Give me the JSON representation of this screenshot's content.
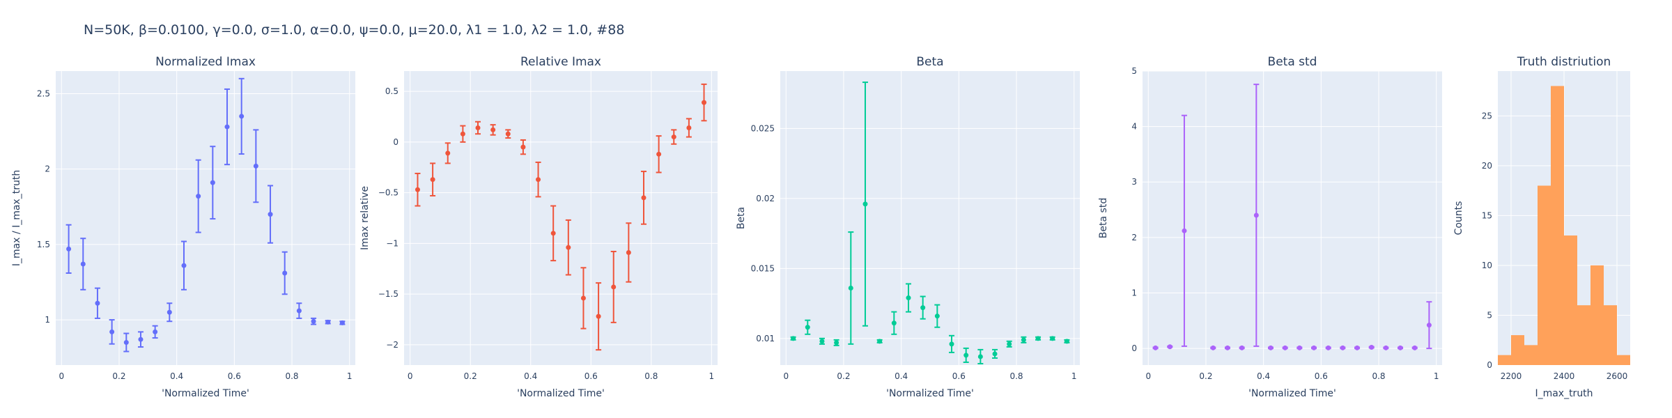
{
  "figure": {
    "title": "N=50K, β=0.0100, γ=0.0, σ=1.0,  α=0.0, ψ=0.0, μ=20.0, λ1 = 1.0, λ2 = 1.0, #88"
  },
  "chart_data": [
    {
      "type": "scatter",
      "title": "Normalized Imax",
      "xlabel": "'Normalized Time'",
      "ylabel": "I_max / I_max_truth",
      "xlim": [
        -0.02,
        1.02
      ],
      "ylim": [
        0.7,
        2.65
      ],
      "xticks": [
        0,
        0.2,
        0.4,
        0.6,
        0.8,
        1
      ],
      "xticklabels": [
        "0",
        "0.2",
        "0.4",
        "0.6",
        "0.8",
        "1"
      ],
      "yticks": [
        1,
        1.5,
        2,
        2.5
      ],
      "yticklabels": [
        "1",
        "1.5",
        "2",
        "2.5"
      ],
      "color": "#636efa",
      "grid": true,
      "x": [
        0.025,
        0.075,
        0.125,
        0.175,
        0.225,
        0.275,
        0.325,
        0.375,
        0.425,
        0.475,
        0.525,
        0.575,
        0.625,
        0.675,
        0.725,
        0.775,
        0.825,
        0.875,
        0.925,
        0.975
      ],
      "y": [
        1.47,
        1.37,
        1.11,
        0.92,
        0.85,
        0.87,
        0.92,
        1.05,
        1.36,
        1.82,
        1.91,
        2.28,
        2.35,
        2.02,
        1.7,
        1.31,
        1.06,
        0.99,
        0.985,
        0.98
      ],
      "err": [
        0.16,
        0.17,
        0.1,
        0.08,
        0.06,
        0.05,
        0.04,
        0.06,
        0.16,
        0.24,
        0.24,
        0.25,
        0.25,
        0.24,
        0.19,
        0.14,
        0.05,
        0.02,
        0.01,
        0.01
      ]
    },
    {
      "type": "scatter",
      "title": "Relative Imax",
      "xlabel": "'Normalized Time'",
      "ylabel": "Imax relative",
      "xlim": [
        -0.02,
        1.02
      ],
      "ylim": [
        -2.2,
        0.7
      ],
      "xticks": [
        0,
        0.2,
        0.4,
        0.6,
        0.8,
        1
      ],
      "xticklabels": [
        "0",
        "0.2",
        "0.4",
        "0.6",
        "0.8",
        "1"
      ],
      "yticks": [
        -2,
        -1.5,
        -1,
        -0.5,
        0,
        0.5
      ],
      "yticklabels": [
        "−2",
        "−1.5",
        "−1",
        "−0.5",
        "0",
        "0.5"
      ],
      "color": "#ef553b",
      "grid": true,
      "x": [
        0.025,
        0.075,
        0.125,
        0.175,
        0.225,
        0.275,
        0.325,
        0.375,
        0.425,
        0.475,
        0.525,
        0.575,
        0.625,
        0.675,
        0.725,
        0.775,
        0.825,
        0.875,
        0.925,
        0.975
      ],
      "y": [
        -0.47,
        -0.37,
        -0.11,
        0.08,
        0.14,
        0.12,
        0.08,
        -0.05,
        -0.37,
        -0.9,
        -1.04,
        -1.54,
        -1.72,
        -1.43,
        -1.09,
        -0.55,
        -0.12,
        0.05,
        0.14,
        0.39
      ],
      "err": [
        0.16,
        0.16,
        0.1,
        0.08,
        0.06,
        0.05,
        0.04,
        0.07,
        0.17,
        0.27,
        0.27,
        0.3,
        0.33,
        0.35,
        0.29,
        0.26,
        0.18,
        0.07,
        0.09,
        0.18
      ]
    },
    {
      "type": "scatter",
      "title": "Beta",
      "xlabel": "'Normalized Time'",
      "ylabel": "Beta",
      "xlim": [
        -0.02,
        1.02
      ],
      "ylim": [
        0.0081,
        0.0291
      ],
      "xticks": [
        0,
        0.2,
        0.4,
        0.6,
        0.8,
        1
      ],
      "xticklabels": [
        "0",
        "0.2",
        "0.4",
        "0.6",
        "0.8",
        "1"
      ],
      "yticks": [
        0.01,
        0.015,
        0.02,
        0.025
      ],
      "yticklabels": [
        "0.01",
        "0.015",
        "0.02",
        "0.025"
      ],
      "color": "#00cc96",
      "grid": true,
      "x": [
        0.025,
        0.075,
        0.125,
        0.175,
        0.225,
        0.275,
        0.325,
        0.375,
        0.425,
        0.475,
        0.525,
        0.575,
        0.625,
        0.675,
        0.725,
        0.775,
        0.825,
        0.875,
        0.925,
        0.975
      ],
      "y": [
        0.01,
        0.0108,
        0.0098,
        0.0097,
        0.0136,
        0.0196,
        0.0098,
        0.0111,
        0.0129,
        0.0122,
        0.0116,
        0.0096,
        0.0088,
        0.0087,
        0.0089,
        0.0096,
        0.0099,
        0.01,
        0.01,
        0.0098
      ],
      "err": [
        0.0001,
        0.0005,
        0.0002,
        0.0002,
        0.004,
        0.0087,
        0.0001,
        0.0008,
        0.001,
        0.0008,
        0.0008,
        0.0006,
        0.0005,
        0.0005,
        0.0003,
        0.0002,
        0.0002,
        0.0001,
        0.0001,
        0.0001
      ]
    },
    {
      "type": "scatter",
      "title": "Beta std",
      "xlabel": "'Normalized Time'",
      "ylabel": "Beta std",
      "xlim": [
        -0.02,
        1.02
      ],
      "ylim": [
        -0.3,
        5.0
      ],
      "xticks": [
        0,
        0.2,
        0.4,
        0.6,
        0.8,
        1
      ],
      "xticklabels": [
        "0",
        "0.2",
        "0.4",
        "0.6",
        "0.8",
        "1"
      ],
      "yticks": [
        0,
        1,
        2,
        3,
        4,
        5
      ],
      "yticklabels": [
        "0",
        "1",
        "2",
        "3",
        "4",
        "5"
      ],
      "color": "#ab63fa",
      "grid": true,
      "x": [
        0.025,
        0.075,
        0.125,
        0.225,
        0.275,
        0.325,
        0.375,
        0.425,
        0.475,
        0.525,
        0.575,
        0.625,
        0.675,
        0.725,
        0.775,
        0.825,
        0.875,
        0.925,
        0.975
      ],
      "y": [
        0.01,
        0.03,
        2.12,
        0.01,
        0.01,
        0.01,
        2.4,
        0.01,
        0.01,
        0.01,
        0.01,
        0.01,
        0.01,
        0.01,
        0.02,
        0.01,
        0.01,
        0.01,
        0.42
      ],
      "err": [
        0.01,
        0.01,
        2.08,
        0.01,
        0.01,
        0.01,
        2.36,
        0.01,
        0.01,
        0.01,
        0.01,
        0.01,
        0.01,
        0.01,
        0.01,
        0.01,
        0.01,
        0.01,
        0.42
      ]
    },
    {
      "type": "bar",
      "title": "Truth distriution",
      "xlabel": "I_max_truth",
      "ylabel": "Counts",
      "xlim": [
        2150,
        2650
      ],
      "ylim": [
        0,
        29.5
      ],
      "xticks": [
        2200,
        2400,
        2600
      ],
      "xticklabels": [
        "2200",
        "2400",
        "2600"
      ],
      "yticks": [
        0,
        5,
        10,
        15,
        20,
        25
      ],
      "yticklabels": [
        "0",
        "5",
        "10",
        "15",
        "20",
        "25"
      ],
      "color": "#ffa15a",
      "grid": true,
      "bin_edges": [
        2150,
        2200,
        2250,
        2300,
        2350,
        2400,
        2450,
        2500,
        2550,
        2600,
        2650
      ],
      "values": [
        1,
        3,
        2,
        18,
        28,
        13,
        6,
        10,
        6,
        1
      ]
    }
  ]
}
